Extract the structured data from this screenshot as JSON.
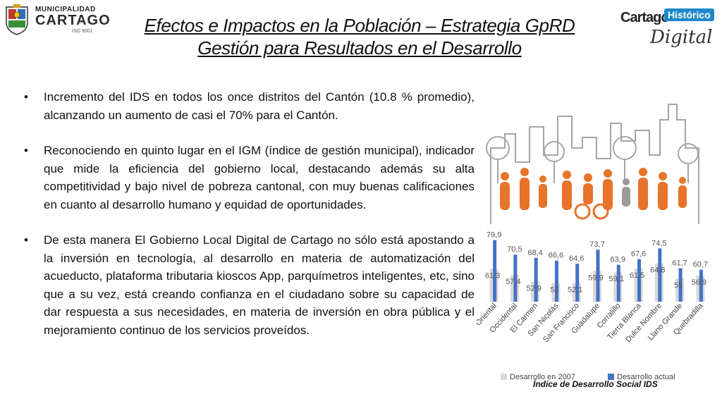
{
  "header": {
    "org_top": "MUNICIPALIDAD",
    "org_main": "CARTAGO",
    "org_sub": "ISO 9001",
    "title_line1": "Efectos e Impactos en la Población – Estrategia GpRD",
    "title_line2": "Gestión para Resultados en el Desarrollo",
    "brand_word1": "Cartago",
    "brand_word2": "Histórico",
    "brand_word3": "Digital"
  },
  "bullets": [
    "Incremento del IDS en todos los once distritos del Cantón (10.8 % promedio), alcanzando un aumento de casi el 70% para el Cantón.",
    "Reconociendo en quinto lugar en el IGM (índice de gestión municipal), indicador que mide la eficiencia del gobierno local, destacando además su alta competitividad y bajo nivel de pobreza cantonal, con muy buenas calificaciones en cuanto al desarrollo humano y equidad de oportunidades.",
    "De esta manera El Gobierno Local Digital de Cartago no sólo está apostando a la inversión en tecnología, al desarrollo en materia de automatización del acueducto, plataforma tributaria kioscos App, parquímetros inteligentes, etc,  sino que a su vez, está creando confianza en el ciudadano sobre su capacidad de dar respuesta a sus necesidades, en materia de inversión en obra pública y el mejoramiento continuo de los servicios proveídos."
  ],
  "caption": "Índice de Desarrollo Social IDS",
  "colors": {
    "series_2007": "#d9d9d9",
    "series_actual": "#4472c4",
    "illustration_orange": "#e8732a",
    "illustration_gray": "#9a9a9a"
  },
  "chart_data": {
    "type": "bar",
    "categories": [
      "Oriental",
      "Occidental",
      "El Carmen",
      "San Nicolás",
      "San Francisco",
      "Guadalupe",
      "Corralillo",
      "Tierra Blanca",
      "Dulce Nombre",
      "Llano Grande",
      "Quebradilla"
    ],
    "series": [
      {
        "name": "Desarrollo en 2007",
        "values": [
          61.3,
          57.4,
          52.9,
          52,
          52.1,
          59.9,
          59.1,
          61.5,
          64.8,
          55,
          56.9
        ],
        "labels": [
          "61,3",
          "57,4",
          "52,9",
          "52",
          "52,1",
          "59,9",
          "59,1",
          "61,5",
          "64,8",
          "55",
          "56,9"
        ]
      },
      {
        "name": "Desarrollo actual",
        "values": [
          79.9,
          70.5,
          68.4,
          66.6,
          64.6,
          73.7,
          63.9,
          67.6,
          74.5,
          61.7,
          60.7
        ],
        "labels": [
          "79,9",
          "70,5",
          "68,4",
          "66,6",
          "64,6",
          "73,7",
          "63,9",
          "67,6",
          "74,5",
          "61,7",
          "60,7"
        ]
      }
    ],
    "legend_position": "bottom",
    "grid": false
  }
}
